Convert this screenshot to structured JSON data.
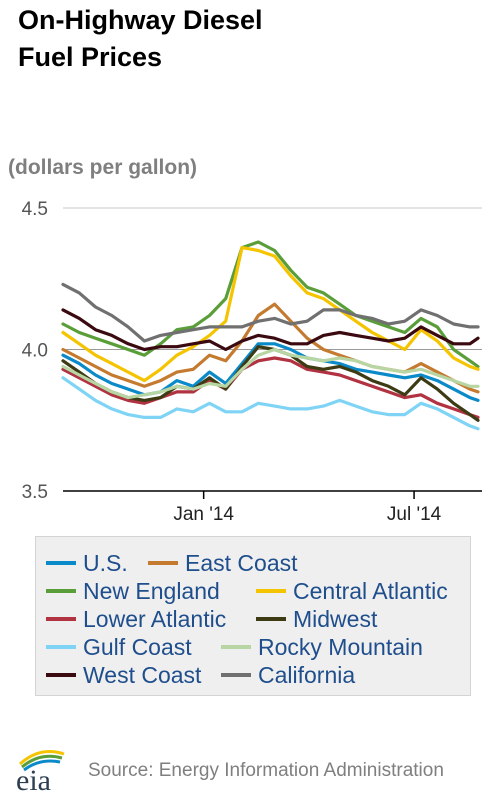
{
  "title_line1": "On-Highway Diesel",
  "title_line2": "Fuel Prices",
  "units": "(dollars per gallon)",
  "source": "Source: Energy Information Administration",
  "logo_text": "eia",
  "chart_data": {
    "type": "line",
    "title": "On-Highway Diesel Fuel Prices",
    "ylabel": "(dollars per gallon)",
    "ylim": [
      3.5,
      4.5
    ],
    "yticks": [
      3.5,
      4.0,
      4.5
    ],
    "ytick_labels": [
      "3.5",
      "4.0",
      "4.5"
    ],
    "xlim": [
      "2013-09-02",
      "2014-08-25"
    ],
    "xticks": [
      {
        "date": "2014-01-01",
        "label": "Jan '14"
      },
      {
        "date": "2014-07-01",
        "label": "Jul '14"
      }
    ],
    "grid": "horizontal",
    "legend_position": "bottom",
    "x": [
      "2013-09-02",
      "2013-09-16",
      "2013-09-30",
      "2013-10-14",
      "2013-10-28",
      "2013-11-11",
      "2013-11-25",
      "2013-12-09",
      "2013-12-23",
      "2014-01-06",
      "2014-01-20",
      "2014-02-03",
      "2014-02-17",
      "2014-03-03",
      "2014-03-17",
      "2014-03-31",
      "2014-04-14",
      "2014-04-28",
      "2014-05-12",
      "2014-05-26",
      "2014-06-09",
      "2014-06-23",
      "2014-07-07",
      "2014-07-21",
      "2014-08-04",
      "2014-08-18",
      "2014-08-25"
    ],
    "series": [
      {
        "name": "U.S.",
        "color": "#0a8ac8",
        "values": [
          3.98,
          3.95,
          3.91,
          3.88,
          3.86,
          3.84,
          3.85,
          3.89,
          3.87,
          3.92,
          3.88,
          3.95,
          4.02,
          4.02,
          4.0,
          3.97,
          3.96,
          3.95,
          3.93,
          3.92,
          3.91,
          3.9,
          3.91,
          3.89,
          3.86,
          3.83,
          3.82
        ]
      },
      {
        "name": "East Coast",
        "color": "#c47a2f",
        "values": [
          4.0,
          3.97,
          3.94,
          3.91,
          3.89,
          3.87,
          3.89,
          3.92,
          3.93,
          3.98,
          3.96,
          4.03,
          4.12,
          4.16,
          4.1,
          4.04,
          4.0,
          3.98,
          3.96,
          3.94,
          3.93,
          3.92,
          3.95,
          3.92,
          3.89,
          3.86,
          3.85
        ]
      },
      {
        "name": "New England",
        "color": "#5a9e3a",
        "values": [
          4.09,
          4.06,
          4.04,
          4.02,
          4.0,
          3.98,
          4.02,
          4.07,
          4.08,
          4.12,
          4.18,
          4.36,
          4.38,
          4.35,
          4.28,
          4.22,
          4.2,
          4.16,
          4.12,
          4.1,
          4.08,
          4.06,
          4.11,
          4.08,
          4.0,
          3.96,
          3.94
        ]
      },
      {
        "name": "Central Atlantic",
        "color": "#f5c400",
        "values": [
          4.06,
          4.02,
          3.98,
          3.95,
          3.92,
          3.89,
          3.93,
          3.98,
          4.01,
          4.05,
          4.1,
          4.36,
          4.35,
          4.33,
          4.26,
          4.2,
          4.18,
          4.14,
          4.1,
          4.06,
          4.03,
          4.0,
          4.07,
          4.03,
          3.97,
          3.94,
          3.93
        ]
      },
      {
        "name": "Lower Atlantic",
        "color": "#b13241",
        "values": [
          3.93,
          3.9,
          3.87,
          3.84,
          3.82,
          3.81,
          3.83,
          3.85,
          3.85,
          3.89,
          3.86,
          3.93,
          3.96,
          3.97,
          3.96,
          3.93,
          3.92,
          3.91,
          3.89,
          3.87,
          3.85,
          3.83,
          3.84,
          3.81,
          3.79,
          3.77,
          3.76
        ]
      },
      {
        "name": "Midwest",
        "color": "#3d3b14",
        "values": [
          3.96,
          3.92,
          3.88,
          3.85,
          3.83,
          3.82,
          3.83,
          3.87,
          3.86,
          3.9,
          3.86,
          3.94,
          4.01,
          4.0,
          3.98,
          3.94,
          3.93,
          3.94,
          3.92,
          3.89,
          3.87,
          3.84,
          3.9,
          3.86,
          3.81,
          3.77,
          3.75
        ]
      },
      {
        "name": "Gulf Coast",
        "color": "#7fd4f5",
        "values": [
          3.9,
          3.86,
          3.82,
          3.79,
          3.77,
          3.76,
          3.76,
          3.79,
          3.78,
          3.81,
          3.78,
          3.78,
          3.81,
          3.8,
          3.79,
          3.79,
          3.8,
          3.82,
          3.8,
          3.78,
          3.77,
          3.77,
          3.81,
          3.79,
          3.76,
          3.73,
          3.72
        ]
      },
      {
        "name": "Rocky Mountain",
        "color": "#b8d6a3",
        "values": [
          3.94,
          3.91,
          3.88,
          3.85,
          3.83,
          3.84,
          3.85,
          3.87,
          3.86,
          3.88,
          3.87,
          3.93,
          3.98,
          4.0,
          3.98,
          3.97,
          3.96,
          3.97,
          3.96,
          3.94,
          3.93,
          3.92,
          3.93,
          3.91,
          3.89,
          3.87,
          3.87
        ]
      },
      {
        "name": "West Coast",
        "color": "#3a0a10",
        "values": [
          4.14,
          4.11,
          4.07,
          4.05,
          4.02,
          4.0,
          4.01,
          4.01,
          4.02,
          4.03,
          4.0,
          4.03,
          4.05,
          4.04,
          4.02,
          4.02,
          4.05,
          4.06,
          4.05,
          4.04,
          4.03,
          4.04,
          4.08,
          4.05,
          4.02,
          4.02,
          4.04
        ]
      },
      {
        "name": "California",
        "color": "#707070",
        "values": [
          4.23,
          4.2,
          4.15,
          4.12,
          4.08,
          4.03,
          4.05,
          4.06,
          4.07,
          4.08,
          4.08,
          4.08,
          4.1,
          4.11,
          4.09,
          4.1,
          4.14,
          4.14,
          4.12,
          4.11,
          4.09,
          4.1,
          4.14,
          4.12,
          4.09,
          4.08,
          4.08
        ]
      }
    ]
  }
}
